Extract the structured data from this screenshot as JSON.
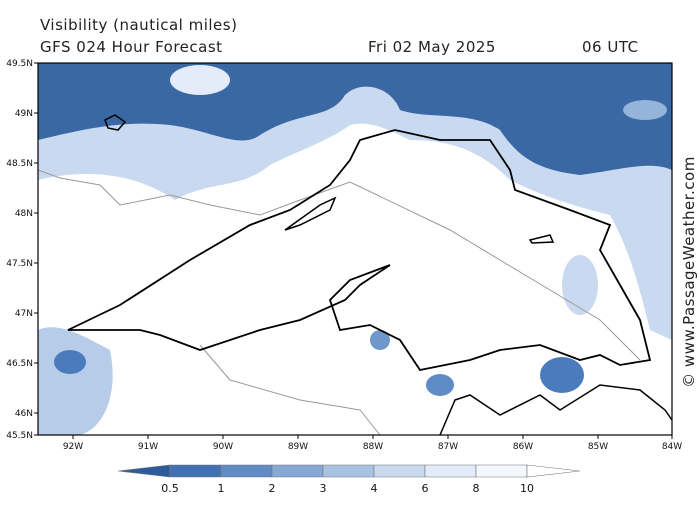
{
  "header": {
    "title": "Visibility (nautical miles)",
    "subtitle": "GFS 024 Hour Forecast",
    "date": "Fri 02 May 2025",
    "time": "06 UTC"
  },
  "map": {
    "lat_labels": [
      "49.5N",
      "49N",
      "48.5N",
      "48N",
      "47.5N",
      "47N",
      "46.5N",
      "46N",
      "45.5N"
    ],
    "lon_labels": [
      "92W",
      "91W",
      "90W",
      "89W",
      "88W",
      "87W",
      "86W",
      "85W",
      "84W"
    ]
  },
  "colorbar": {
    "labels": [
      0.5,
      1,
      2,
      3,
      4,
      6,
      8,
      10
    ],
    "colors": [
      "#2c5c9c",
      "#3f72b4",
      "#5f8cc6",
      "#85a8d6",
      "#a9c2e4",
      "#c9d9ef",
      "#e2ebf7",
      "#f4f7fc",
      "#ffffff"
    ]
  },
  "credit": "© www.PassageWeather.com"
}
